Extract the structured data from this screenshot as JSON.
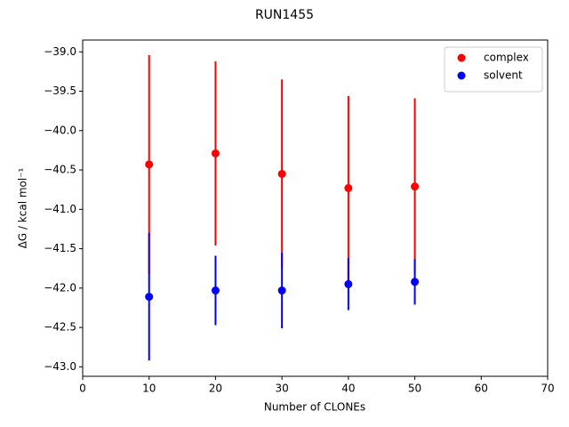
{
  "chart_data": {
    "type": "errorbar-scatter",
    "title": "RUN1455",
    "xlabel": "Number of CLONEs",
    "ylabel": "ΔG / kcal mol⁻¹",
    "x": [
      10,
      20,
      30,
      40,
      50
    ],
    "series": [
      {
        "name": "complex",
        "color": "#ff0000",
        "values": [
          -40.43,
          -40.29,
          -40.55,
          -40.73,
          -40.71
        ],
        "errors": [
          1.39,
          1.17,
          1.2,
          1.17,
          1.12
        ]
      },
      {
        "name": "solvent",
        "color": "#0000ff",
        "values": [
          -42.11,
          -42.03,
          -42.03,
          -41.95,
          -41.92
        ],
        "errors": [
          0.81,
          0.44,
          0.48,
          0.33,
          0.29
        ]
      }
    ],
    "xlim": [
      0,
      70
    ],
    "xticks": [
      0,
      10,
      20,
      30,
      40,
      50,
      60,
      70
    ],
    "ylim": [
      -43.12,
      -38.85
    ],
    "yticks": [
      {
        "value": -43.0,
        "label": "−43.0"
      },
      {
        "value": -42.5,
        "label": "−42.5"
      },
      {
        "value": -42.0,
        "label": "−42.0"
      },
      {
        "value": -41.5,
        "label": "−41.5"
      },
      {
        "value": -41.0,
        "label": "−41.0"
      },
      {
        "value": -40.5,
        "label": "−40.5"
      },
      {
        "value": -40.0,
        "label": "−40.0"
      },
      {
        "value": -39.5,
        "label": "−39.5"
      },
      {
        "value": -39.0,
        "label": "−39.0"
      }
    ],
    "legend": "upper right",
    "grid": false
  }
}
